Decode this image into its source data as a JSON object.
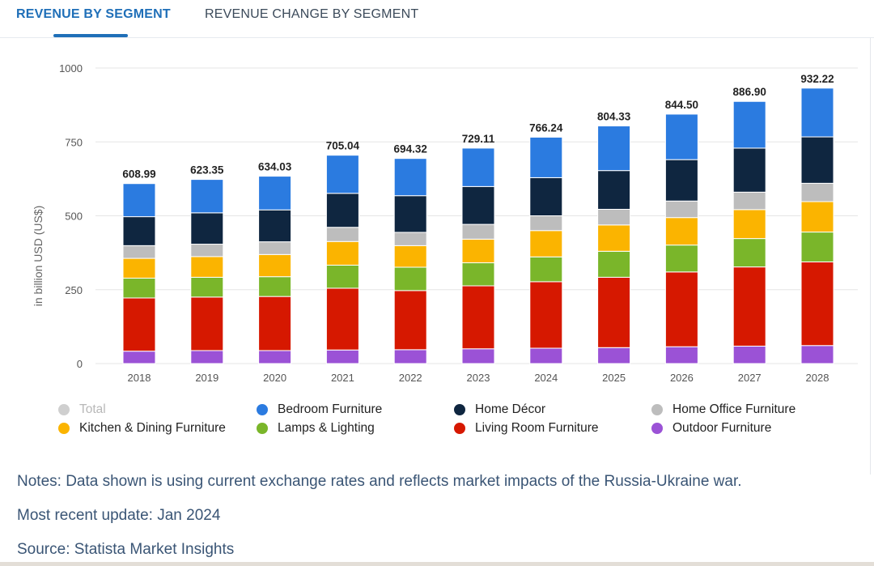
{
  "tabs": [
    {
      "label": "REVENUE BY SEGMENT",
      "active": true
    },
    {
      "label": "REVENUE CHANGE BY SEGMENT",
      "active": false
    }
  ],
  "legend": [
    {
      "label": "Total",
      "color": "#cfcfcf",
      "disabled": true
    },
    {
      "label": "Bedroom Furniture",
      "color": "#2b7be0"
    },
    {
      "label": "Home Décor",
      "color": "#0f2640"
    },
    {
      "label": "Home Office Furniture",
      "color": "#bdbdbd"
    },
    {
      "label": "Kitchen & Dining Furniture",
      "color": "#fbb400"
    },
    {
      "label": "Lamps & Lighting",
      "color": "#7ab62a"
    },
    {
      "label": "Living Room Furniture",
      "color": "#d61800"
    },
    {
      "label": "Outdoor Furniture",
      "color": "#9b52d6"
    }
  ],
  "notes": {
    "note": "Notes: Data shown is using current exchange rates and reflects market impacts of the Russia-Ukraine war.",
    "update": "Most recent update: Jan 2024",
    "source": "Source: Statista Market Insights"
  },
  "chart_data": {
    "type": "bar",
    "stacked": true,
    "ylabel": "in billion USD (US$)",
    "ylim": [
      0,
      1000
    ],
    "yticks": [
      0,
      250,
      500,
      750,
      1000
    ],
    "categories": [
      "2018",
      "2019",
      "2020",
      "2021",
      "2022",
      "2023",
      "2024",
      "2025",
      "2026",
      "2027",
      "2028"
    ],
    "totals": [
      "608.99",
      "623.35",
      "634.03",
      "705.04",
      "694.32",
      "729.11",
      "766.24",
      "804.33",
      "844.50",
      "886.90",
      "932.22"
    ],
    "series": [
      {
        "name": "Outdoor Furniture",
        "color": "#9b52d6",
        "values": [
          42,
          44,
          44,
          46,
          47,
          50,
          52,
          54,
          57,
          59,
          61
        ]
      },
      {
        "name": "Living Room Furniture",
        "color": "#d61800",
        "values": [
          180,
          181,
          183,
          209,
          200,
          213,
          225,
          238,
          253,
          268,
          283
        ]
      },
      {
        "name": "Lamps & Lighting",
        "color": "#7ab62a",
        "values": [
          67,
          67,
          67,
          78,
          79,
          78,
          84,
          88,
          91,
          96,
          101
        ]
      },
      {
        "name": "Kitchen & Dining Furniture",
        "color": "#fbb400",
        "values": [
          67,
          70,
          75,
          80,
          73,
          80,
          89,
          89,
          93,
          98,
          103
        ]
      },
      {
        "name": "Home Office Furniture",
        "color": "#bdbdbd",
        "values": [
          43,
          42,
          43,
          48,
          45,
          50,
          50,
          53,
          56,
          59,
          62
        ]
      },
      {
        "name": "Home Décor",
        "color": "#0f2640",
        "values": [
          98,
          106,
          108,
          115,
          124,
          128,
          129,
          131,
          140,
          149,
          157
        ]
      },
      {
        "name": "Bedroom Furniture",
        "color": "#2b7be0",
        "values": [
          112,
          113,
          114,
          129,
          126,
          130,
          137,
          151,
          154,
          158,
          165
        ]
      }
    ]
  }
}
